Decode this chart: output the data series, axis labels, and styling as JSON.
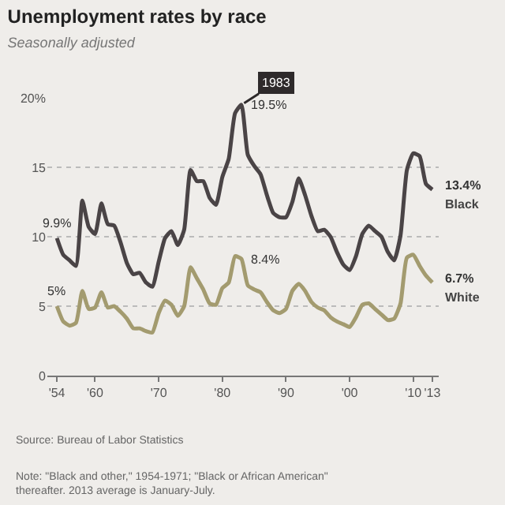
{
  "chart_data": {
    "type": "line",
    "title": "Unemployment rates by race",
    "subtitle": "Seasonally adjusted",
    "x": [
      1954,
      1955,
      1956,
      1957,
      1958,
      1959,
      1960,
      1961,
      1962,
      1963,
      1964,
      1965,
      1966,
      1967,
      1968,
      1969,
      1970,
      1971,
      1972,
      1973,
      1974,
      1975,
      1976,
      1977,
      1978,
      1979,
      1980,
      1981,
      1982,
      1983,
      1984,
      1985,
      1986,
      1987,
      1988,
      1989,
      1990,
      1991,
      1992,
      1993,
      1994,
      1995,
      1996,
      1997,
      1998,
      1999,
      2000,
      2001,
      2002,
      2003,
      2004,
      2005,
      2006,
      2007,
      2008,
      2009,
      2010,
      2011,
      2012,
      2013
    ],
    "series": [
      {
        "name": "Black",
        "color": "#4a4446",
        "values": [
          9.9,
          8.7,
          8.3,
          7.9,
          12.6,
          10.7,
          10.2,
          12.4,
          10.9,
          10.8,
          9.6,
          8.1,
          7.3,
          7.4,
          6.7,
          6.4,
          8.2,
          9.9,
          10.4,
          9.4,
          10.5,
          14.8,
          14.0,
          14.0,
          12.8,
          12.3,
          14.3,
          15.6,
          18.9,
          19.5,
          15.9,
          15.1,
          14.5,
          13.0,
          11.7,
          11.4,
          11.4,
          12.5,
          14.2,
          13.0,
          11.5,
          10.4,
          10.5,
          10.0,
          8.9,
          8.0,
          7.6,
          8.6,
          10.2,
          10.8,
          10.4,
          10.0,
          8.9,
          8.3,
          10.1,
          14.8,
          16.0,
          15.8,
          13.8,
          13.4
        ]
      },
      {
        "name": "White",
        "color": "#a39b6f",
        "values": [
          5.0,
          3.9,
          3.6,
          3.8,
          6.1,
          4.8,
          4.9,
          6.0,
          4.9,
          5.0,
          4.6,
          4.1,
          3.4,
          3.4,
          3.2,
          3.1,
          4.5,
          5.4,
          5.1,
          4.3,
          5.0,
          7.8,
          7.0,
          6.2,
          5.2,
          5.1,
          6.3,
          6.7,
          8.6,
          8.4,
          6.5,
          6.2,
          6.0,
          5.3,
          4.7,
          4.5,
          4.8,
          6.1,
          6.6,
          6.1,
          5.3,
          4.9,
          4.7,
          4.2,
          3.9,
          3.7,
          3.5,
          4.2,
          5.1,
          5.2,
          4.8,
          4.4,
          4.0,
          4.1,
          5.2,
          8.5,
          8.7,
          7.9,
          7.2,
          6.7
        ]
      }
    ],
    "xlim": [
      1952.5,
      2014
    ],
    "xticks": [
      {
        "value": 1954,
        "label": "'54"
      },
      {
        "value": 1960,
        "label": "'60"
      },
      {
        "value": 1970,
        "label": "'70"
      },
      {
        "value": 1980,
        "label": "'80"
      },
      {
        "value": 1990,
        "label": "'90"
      },
      {
        "value": 2000,
        "label": "'00"
      },
      {
        "value": 2010,
        "label": "'10"
      },
      {
        "value": 2013,
        "label": "'13"
      }
    ],
    "ylim": [
      0,
      20
    ],
    "yticks": [
      0,
      5,
      10,
      15,
      {
        "value": 20,
        "label": "20%"
      }
    ],
    "grid": "y",
    "legend": false,
    "annotations": [
      {
        "text": "9.9%",
        "x": 1954,
        "y": 9.9
      },
      {
        "text": "5%",
        "x": 1954,
        "y": 5.0
      },
      {
        "text": "19.5%",
        "x": 1983,
        "y": 19.5
      },
      {
        "text": "1983",
        "x": 1983,
        "y": 19.5
      },
      {
        "text": "8.4%",
        "x": 1983,
        "y": 8.4
      },
      {
        "text": "13.4%",
        "x": 2013,
        "y": 13.4
      },
      {
        "text": "6.7%",
        "x": 2013,
        "y": 6.7
      },
      "Source: Bureau of Labor Statistics",
      "Note: \"Black and other,\" 1954-1971; \"Black or African American\" thereafter. 2013 average is January-July."
    ]
  }
}
